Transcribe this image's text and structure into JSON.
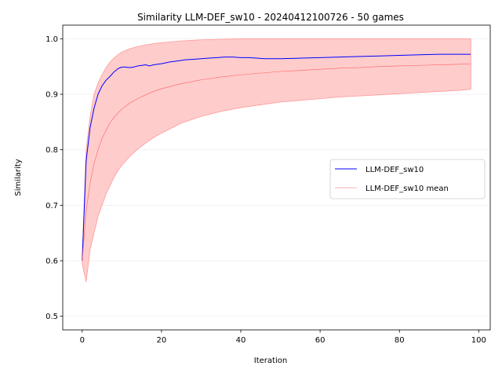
{
  "chart_data": {
    "type": "line",
    "title": "Similarity LLM-DEF_sw10 - 20240412100726 - 50 games",
    "xlabel": "Iteration",
    "ylabel": "Similarity",
    "xlim": [
      -4.9,
      102.9
    ],
    "ylim": [
      0.4755,
      1.0245
    ],
    "x_ticks": [
      0,
      20,
      40,
      60,
      80,
      100
    ],
    "y_ticks": [
      0.5,
      0.6,
      0.7,
      0.8,
      0.9,
      1.0
    ],
    "x_tick_labels": [
      "0",
      "20",
      "40",
      "60",
      "80",
      "100"
    ],
    "y_tick_labels": [
      "0.5",
      "0.6",
      "0.7",
      "0.8",
      "0.9",
      "1.0"
    ],
    "grid": "horizontal",
    "legend_position": "center-right",
    "colors": {
      "series": "#0000ff",
      "mean": "#ff6060",
      "band": "#ffcccc",
      "band_edge": "#ff9999",
      "grid": "#eeeeee"
    },
    "series": [
      {
        "name": "LLM-DEF_sw10",
        "x": [
          0,
          1,
          2,
          3,
          4,
          5,
          6,
          7,
          8,
          9,
          10,
          11,
          12,
          13,
          14,
          15,
          16,
          17,
          18,
          20,
          22,
          24,
          26,
          28,
          30,
          32,
          34,
          36,
          38,
          40,
          42,
          44,
          46,
          48,
          50,
          55,
          60,
          65,
          70,
          75,
          80,
          85,
          90,
          95,
          98
        ],
        "values": [
          0.6,
          0.78,
          0.84,
          0.875,
          0.9,
          0.915,
          0.925,
          0.932,
          0.94,
          0.946,
          0.949,
          0.949,
          0.948,
          0.949,
          0.951,
          0.952,
          0.953,
          0.951,
          0.953,
          0.955,
          0.958,
          0.96,
          0.962,
          0.963,
          0.964,
          0.965,
          0.966,
          0.967,
          0.967,
          0.966,
          0.966,
          0.965,
          0.964,
          0.964,
          0.964,
          0.965,
          0.966,
          0.967,
          0.968,
          0.969,
          0.97,
          0.971,
          0.972,
          0.972,
          0.972
        ]
      },
      {
        "name": "LLM-DEF_sw10 mean",
        "x": [
          0,
          1,
          2,
          3,
          4,
          5,
          6,
          7,
          8,
          9,
          10,
          12,
          14,
          16,
          18,
          20,
          25,
          30,
          35,
          40,
          45,
          50,
          55,
          60,
          65,
          70,
          75,
          80,
          85,
          90,
          95,
          98
        ],
        "values": [
          0.6,
          0.69,
          0.74,
          0.775,
          0.8,
          0.82,
          0.835,
          0.848,
          0.858,
          0.866,
          0.873,
          0.884,
          0.892,
          0.899,
          0.905,
          0.91,
          0.919,
          0.926,
          0.931,
          0.935,
          0.938,
          0.941,
          0.943,
          0.945,
          0.947,
          0.948,
          0.95,
          0.951,
          0.952,
          0.953,
          0.954,
          0.955
        ]
      }
    ],
    "band": {
      "x": [
        0,
        1,
        2,
        3,
        4,
        5,
        6,
        7,
        8,
        9,
        10,
        12,
        14,
        16,
        18,
        20,
        25,
        30,
        35,
        40,
        45,
        50,
        55,
        60,
        65,
        70,
        75,
        80,
        85,
        90,
        95,
        98
      ],
      "upper": [
        0.605,
        0.8,
        0.86,
        0.9,
        0.92,
        0.935,
        0.948,
        0.958,
        0.965,
        0.971,
        0.976,
        0.982,
        0.986,
        0.989,
        0.991,
        0.993,
        0.996,
        0.998,
        0.999,
        1.0,
        1.0,
        1.0,
        1.0,
        1.0,
        1.0,
        1.0,
        1.0,
        1.0,
        1.0,
        1.0,
        1.0,
        1.0
      ],
      "lower": [
        0.595,
        0.562,
        0.62,
        0.65,
        0.68,
        0.7,
        0.72,
        0.735,
        0.75,
        0.762,
        0.772,
        0.788,
        0.801,
        0.812,
        0.822,
        0.83,
        0.848,
        0.86,
        0.869,
        0.876,
        0.881,
        0.886,
        0.889,
        0.892,
        0.895,
        0.897,
        0.899,
        0.901,
        0.903,
        0.905,
        0.907,
        0.909
      ]
    }
  }
}
